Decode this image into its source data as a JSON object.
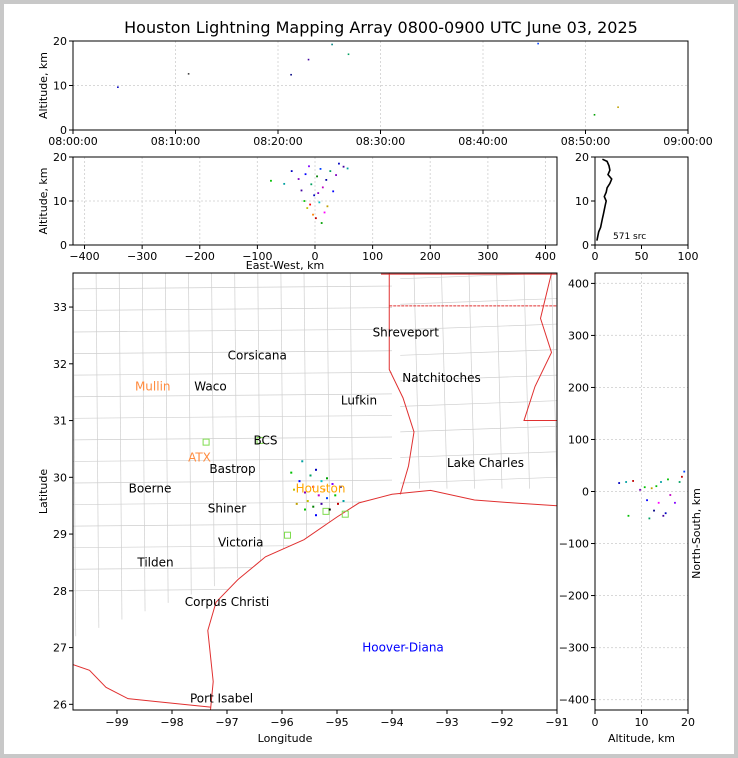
{
  "window": {
    "background": "#c8c8c8"
  },
  "chart_data": [
    {
      "panel": "time-altitude",
      "type": "scatter",
      "title": "Houston Lightning Mapping Array 0800-0900 UTC June 03, 2025",
      "xlabel": "",
      "ylabel": "Altitude, km",
      "x_ticks": [
        "08:00:00",
        "08:10:00",
        "08:20:00",
        "08:30:00",
        "08:40:00",
        "08:50:00",
        "09:00:00"
      ],
      "xlim": [
        0,
        60
      ],
      "x_unit": "minutes after 08:00:00",
      "ylim": [
        0,
        20
      ],
      "y_ticks": [
        0,
        10,
        20
      ],
      "grid": true,
      "points": [
        {
          "x": 4.3,
          "y": 9.8,
          "color": "#0000c0"
        },
        {
          "x": 11.2,
          "y": 12.8,
          "color": "#404040"
        },
        {
          "x": 21.2,
          "y": 12.6,
          "color": "#000080"
        },
        {
          "x": 22.9,
          "y": 16.0,
          "color": "#4000a0"
        },
        {
          "x": 25.2,
          "y": 19.4,
          "color": "#008080"
        },
        {
          "x": 26.8,
          "y": 17.2,
          "color": "#00a060"
        },
        {
          "x": 45.3,
          "y": 19.6,
          "color": "#0040ff"
        },
        {
          "x": 50.8,
          "y": 3.6,
          "color": "#00a000"
        },
        {
          "x": 53.1,
          "y": 5.3,
          "color": "#c0a000"
        }
      ]
    },
    {
      "panel": "east-west-altitude",
      "type": "scatter",
      "xlabel": "East-West, km",
      "ylabel": "Altitude, km",
      "xlim": [
        -420,
        420
      ],
      "x_ticks": [
        -400,
        -300,
        -200,
        -100,
        0,
        100,
        200,
        300,
        400
      ],
      "ylim": [
        0,
        20
      ],
      "y_ticks": [
        0,
        10,
        20
      ],
      "grid": true,
      "points": [
        {
          "x": -78,
          "y": 14.8,
          "color": "#00c000"
        },
        {
          "x": -55,
          "y": 14.1,
          "color": "#00a0a0"
        },
        {
          "x": -42,
          "y": 17.0,
          "color": "#0000c0"
        },
        {
          "x": -30,
          "y": 15.2,
          "color": "#8000c0"
        },
        {
          "x": -25,
          "y": 12.6,
          "color": "#4000a0"
        },
        {
          "x": -20,
          "y": 10.2,
          "color": "#00c000"
        },
        {
          "x": -18,
          "y": 16.3,
          "color": "#0000ff"
        },
        {
          "x": -15,
          "y": 8.6,
          "color": "#c0c000"
        },
        {
          "x": -12,
          "y": 18.1,
          "color": "#8000ff"
        },
        {
          "x": -10,
          "y": 9.4,
          "color": "#ff0000"
        },
        {
          "x": -8,
          "y": 14.0,
          "color": "#00a060"
        },
        {
          "x": -5,
          "y": 7.1,
          "color": "#ff8000"
        },
        {
          "x": -3,
          "y": 11.5,
          "color": "#0000c0"
        },
        {
          "x": 0,
          "y": 6.3,
          "color": "#c00000"
        },
        {
          "x": 2,
          "y": 15.8,
          "color": "#008000"
        },
        {
          "x": 4,
          "y": 12.0,
          "color": "#8000c0"
        },
        {
          "x": 6,
          "y": 9.9,
          "color": "#00c0c0"
        },
        {
          "x": 8,
          "y": 17.5,
          "color": "#0040ff"
        },
        {
          "x": 10,
          "y": 5.2,
          "color": "#00a000"
        },
        {
          "x": 12,
          "y": 13.3,
          "color": "#c000c0"
        },
        {
          "x": 15,
          "y": 7.6,
          "color": "#ff00ff"
        },
        {
          "x": 18,
          "y": 15.0,
          "color": "#0000a0"
        },
        {
          "x": 20,
          "y": 9.0,
          "color": "#c0a000"
        },
        {
          "x": 25,
          "y": 17.0,
          "color": "#00a060"
        },
        {
          "x": 30,
          "y": 12.4,
          "color": "#0000ff"
        },
        {
          "x": 35,
          "y": 16.1,
          "color": "#8000c0"
        },
        {
          "x": 40,
          "y": 18.7,
          "color": "#0000c0"
        },
        {
          "x": 48,
          "y": 18.0,
          "color": "#4000a0"
        },
        {
          "x": 55,
          "y": 17.6,
          "color": "#00a0a0"
        }
      ]
    },
    {
      "panel": "altitude-histogram",
      "type": "line",
      "annotation": "571 src",
      "xlim": [
        0,
        100
      ],
      "x_ticks": [
        0,
        50,
        100
      ],
      "ylim": [
        0,
        20
      ],
      "y_ticks": [
        0,
        10,
        20
      ],
      "altitude_km": [
        1,
        2,
        3,
        4,
        5,
        6,
        7,
        8,
        9,
        10,
        11,
        12,
        13,
        14,
        15,
        16,
        17,
        18,
        19,
        19.5
      ],
      "counts": [
        2,
        3,
        4,
        6,
        7,
        8,
        9,
        10,
        11,
        12,
        10,
        12,
        13,
        16,
        18,
        14,
        16,
        15,
        13,
        8
      ]
    },
    {
      "panel": "map",
      "type": "scatter",
      "xlabel": "Longitude",
      "ylabel": "Latitude",
      "xlim": [
        -99.8,
        -91
      ],
      "x_ticks": [
        -99,
        -98,
        -97,
        -96,
        -95,
        -94,
        -93,
        -92,
        -91
      ],
      "ylim": [
        25.9,
        33.6
      ],
      "y_ticks": [
        26,
        27,
        28,
        29,
        30,
        31,
        32,
        33
      ],
      "cities": [
        {
          "name": "Shreveport",
          "lon": -93.75,
          "lat": 32.55,
          "color": "#000000"
        },
        {
          "name": "Corsicana",
          "lon": -96.45,
          "lat": 32.15,
          "color": "#000000"
        },
        {
          "name": "Natchitoches",
          "lon": -93.1,
          "lat": 31.75,
          "color": "#000000"
        },
        {
          "name": "Mullin",
          "lon": -98.35,
          "lat": 31.6,
          "color": "#ff8c40"
        },
        {
          "name": "Waco",
          "lon": -97.3,
          "lat": 31.6,
          "color": "#000000"
        },
        {
          "name": "Lufkin",
          "lon": -94.6,
          "lat": 31.35,
          "color": "#000000"
        },
        {
          "name": "BCS",
          "lon": -96.3,
          "lat": 30.65,
          "color": "#000000"
        },
        {
          "name": "ATX",
          "lon": -97.5,
          "lat": 30.35,
          "color": "#ff8c40"
        },
        {
          "name": "Bastrop",
          "lon": -96.9,
          "lat": 30.15,
          "color": "#000000"
        },
        {
          "name": "Lake Charles",
          "lon": -92.3,
          "lat": 30.25,
          "color": "#000000"
        },
        {
          "name": "Houston",
          "lon": -95.3,
          "lat": 29.8,
          "color": "#ffa500"
        },
        {
          "name": "Boerne",
          "lon": -98.4,
          "lat": 29.8,
          "color": "#000000"
        },
        {
          "name": "Shiner",
          "lon": -97.0,
          "lat": 29.45,
          "color": "#000000"
        },
        {
          "name": "Victoria",
          "lon": -96.75,
          "lat": 28.85,
          "color": "#000000"
        },
        {
          "name": "Tilden",
          "lon": -98.3,
          "lat": 28.5,
          "color": "#000000"
        },
        {
          "name": "Corpus Christi",
          "lon": -97.0,
          "lat": 27.8,
          "color": "#000000"
        },
        {
          "name": "Hoover-Diana",
          "lon": -93.8,
          "lat": 27.0,
          "color": "#0000ff"
        },
        {
          "name": "Port Isabel",
          "lon": -97.1,
          "lat": 26.1,
          "color": "#000000"
        }
      ],
      "stations": [
        {
          "lon": -97.38,
          "lat": 30.62
        },
        {
          "lon": -96.4,
          "lat": 30.65
        },
        {
          "lon": -95.9,
          "lat": 28.98
        },
        {
          "lon": -94.85,
          "lat": 29.35
        },
        {
          "lon": -95.2,
          "lat": 29.4
        }
      ],
      "points": [
        {
          "lon": -95.85,
          "lat": 30.1,
          "color": "#00c000"
        },
        {
          "lon": -95.7,
          "lat": 29.95,
          "color": "#0000ff"
        },
        {
          "lon": -95.65,
          "lat": 30.3,
          "color": "#00a0a0"
        },
        {
          "lon": -95.6,
          "lat": 29.75,
          "color": "#8000c0"
        },
        {
          "lon": -95.55,
          "lat": 29.6,
          "color": "#c0c000"
        },
        {
          "lon": -95.5,
          "lat": 30.05,
          "color": "#00a060"
        },
        {
          "lon": -95.45,
          "lat": 29.85,
          "color": "#ff0000"
        },
        {
          "lon": -95.45,
          "lat": 29.5,
          "color": "#008000"
        },
        {
          "lon": -95.4,
          "lat": 30.15,
          "color": "#0000c0"
        },
        {
          "lon": -95.35,
          "lat": 29.7,
          "color": "#c000c0"
        },
        {
          "lon": -95.3,
          "lat": 29.95,
          "color": "#00c0c0"
        },
        {
          "lon": -95.3,
          "lat": 29.55,
          "color": "#4000a0"
        },
        {
          "lon": -95.25,
          "lat": 29.8,
          "color": "#ff8000"
        },
        {
          "lon": -95.2,
          "lat": 30.0,
          "color": "#00a000"
        },
        {
          "lon": -95.2,
          "lat": 29.65,
          "color": "#0040ff"
        },
        {
          "lon": -95.15,
          "lat": 29.45,
          "color": "#000000"
        },
        {
          "lon": -95.1,
          "lat": 29.9,
          "color": "#8000ff"
        },
        {
          "lon": -95.05,
          "lat": 29.7,
          "color": "#00c000"
        },
        {
          "lon": -95.0,
          "lat": 29.55,
          "color": "#c00000"
        },
        {
          "lon": -94.95,
          "lat": 29.85,
          "color": "#0000a0"
        },
        {
          "lon": -94.9,
          "lat": 29.6,
          "color": "#00a0a0"
        },
        {
          "lon": -95.75,
          "lat": 29.55,
          "color": "#c0a000"
        },
        {
          "lon": -95.6,
          "lat": 29.45,
          "color": "#00c000"
        },
        {
          "lon": -95.4,
          "lat": 29.35,
          "color": "#0000ff"
        },
        {
          "lon": -95.8,
          "lat": 29.8,
          "color": "#c0c000"
        }
      ]
    },
    {
      "panel": "altitude-north-south",
      "type": "scatter",
      "xlabel": "Altitude, km",
      "ylabel": "North-South, km",
      "xlim": [
        0,
        20
      ],
      "x_ticks": [
        0,
        10,
        20
      ],
      "ylim": [
        -420,
        420
      ],
      "y_ticks": [
        -400,
        -300,
        -200,
        -100,
        0,
        100,
        200,
        300,
        400
      ],
      "grid": true,
      "points": [
        {
          "x": 5.0,
          "y": 18,
          "color": "#0000c0"
        },
        {
          "x": 6.5,
          "y": 20,
          "color": "#00a0a0"
        },
        {
          "x": 7.0,
          "y": -45,
          "color": "#00c000"
        },
        {
          "x": 8.0,
          "y": 22,
          "color": "#c00000"
        },
        {
          "x": 9.5,
          "y": 5,
          "color": "#8000c0"
        },
        {
          "x": 10.5,
          "y": 10,
          "color": "#00c000"
        },
        {
          "x": 11.0,
          "y": -15,
          "color": "#0000ff"
        },
        {
          "x": 11.5,
          "y": -50,
          "color": "#00a060"
        },
        {
          "x": 12.0,
          "y": 8,
          "color": "#c0a000"
        },
        {
          "x": 12.5,
          "y": -35,
          "color": "#000080"
        },
        {
          "x": 13.0,
          "y": 12,
          "color": "#00c000"
        },
        {
          "x": 13.5,
          "y": -20,
          "color": "#ff00ff"
        },
        {
          "x": 14.0,
          "y": 20,
          "color": "#00a0a0"
        },
        {
          "x": 14.5,
          "y": -45,
          "color": "#4000a0"
        },
        {
          "x": 15.0,
          "y": -40,
          "color": "#0000c0"
        },
        {
          "x": 15.5,
          "y": 25,
          "color": "#00c000"
        },
        {
          "x": 16.0,
          "y": -5,
          "color": "#c000c0"
        },
        {
          "x": 17.0,
          "y": -20,
          "color": "#8000ff"
        },
        {
          "x": 18.0,
          "y": 20,
          "color": "#00a060"
        },
        {
          "x": 18.5,
          "y": 30,
          "color": "#c00000"
        },
        {
          "x": 19.0,
          "y": 40,
          "color": "#0040ff"
        }
      ]
    }
  ]
}
